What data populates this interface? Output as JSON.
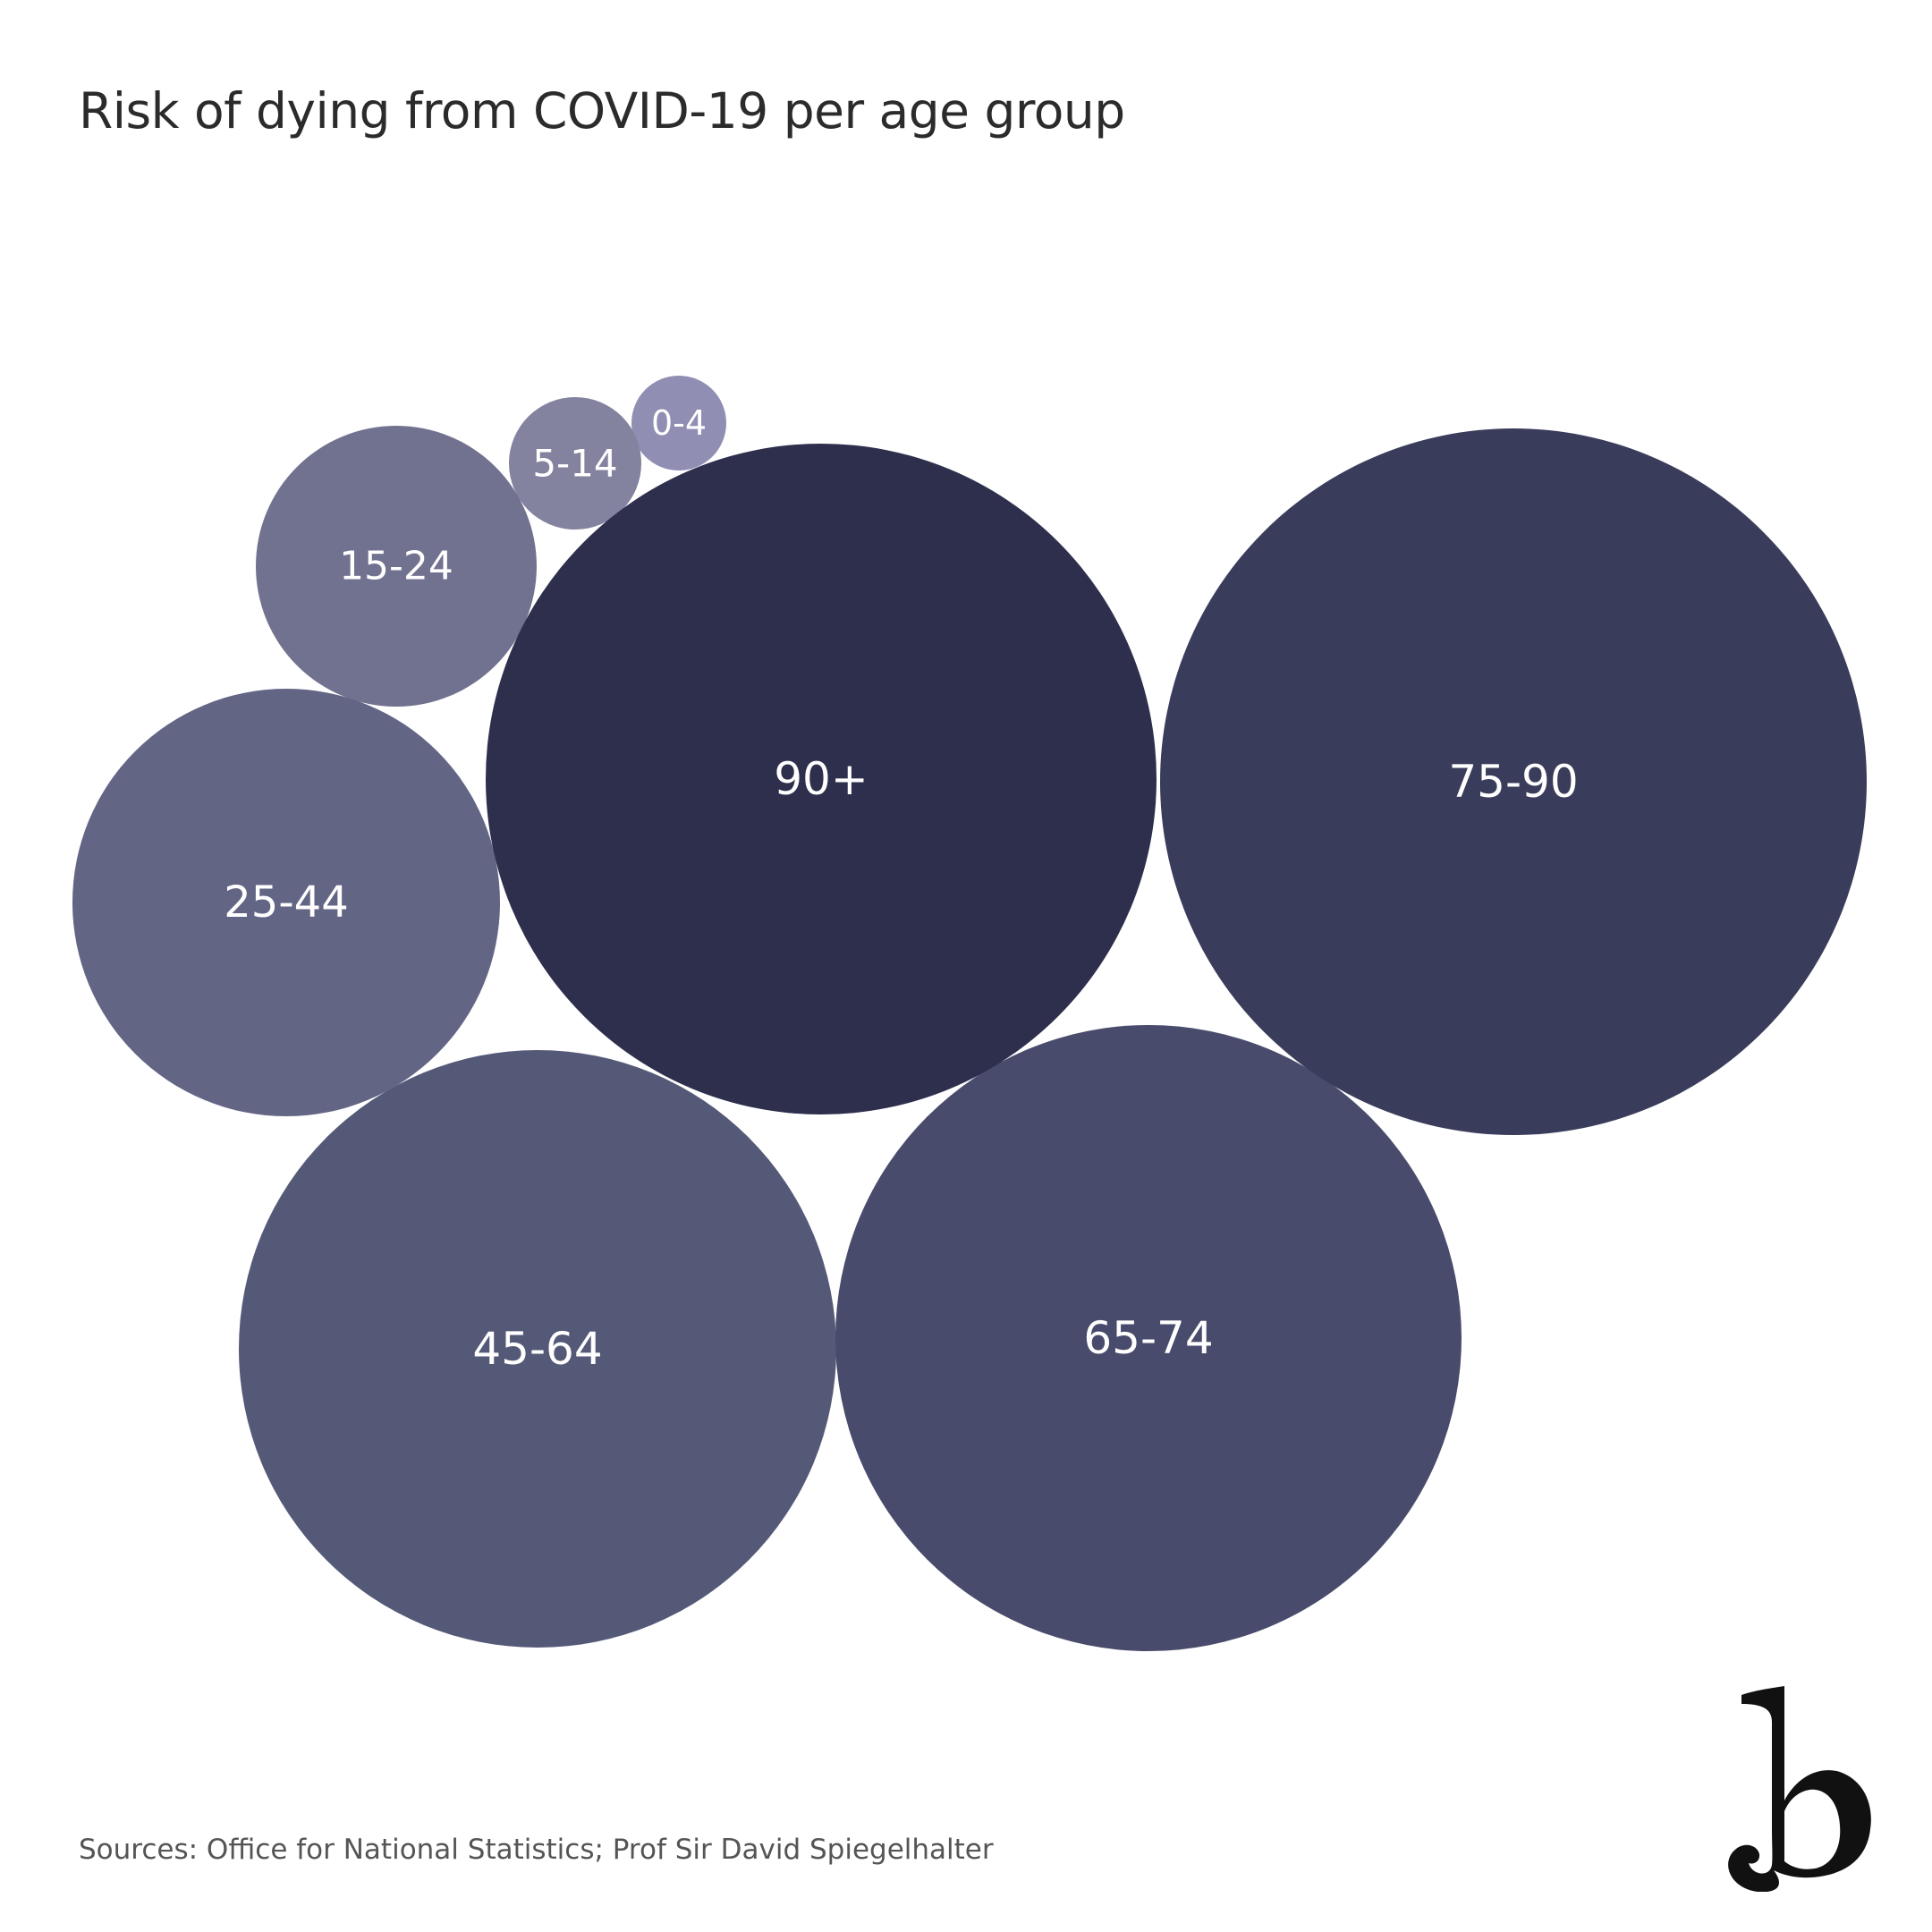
{
  "title": "Risk of dying from COVID-19 per age group",
  "source": "Sources: Office for National Statistics; Prof Sir David Spiegelhalter",
  "logo": {
    "letter": "b"
  },
  "chart_data": {
    "type": "bubble",
    "title": "Risk of dying from COVID-19 per age group",
    "bubbles": [
      {
        "label": "0-4",
        "color": "#908fb3"
      },
      {
        "label": "5-14",
        "color": "#83829f"
      },
      {
        "label": "15-24",
        "color": "#717290"
      },
      {
        "label": "25-44",
        "color": "#636585"
      },
      {
        "label": "45-64",
        "color": "#555978"
      },
      {
        "label": "65-74",
        "color": "#484b6b"
      },
      {
        "label": "75-90",
        "color": "#3a3c5b"
      },
      {
        "label": "90+",
        "color": "#2d2f4d"
      }
    ]
  }
}
